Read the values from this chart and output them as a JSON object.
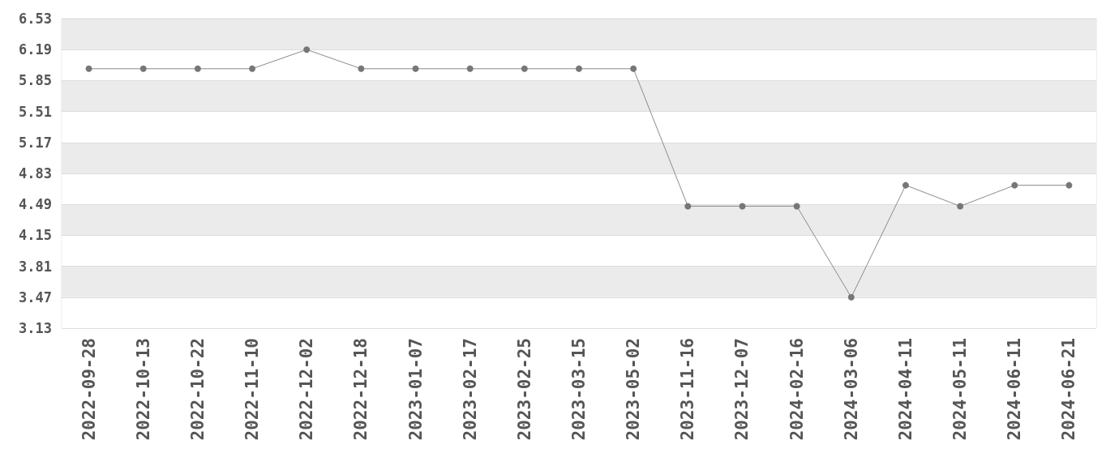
{
  "chart_data": {
    "type": "line",
    "categories": [
      "2022-09-28",
      "2022-10-13",
      "2022-10-22",
      "2022-11-10",
      "2022-12-02",
      "2022-12-18",
      "2023-01-07",
      "2023-02-17",
      "2023-02-25",
      "2023-03-15",
      "2023-05-02",
      "2023-11-16",
      "2023-12-07",
      "2024-02-16",
      "2024-03-06",
      "2024-04-11",
      "2024-05-11",
      "2024-06-11",
      "2024-06-21"
    ],
    "values": [
      5.98,
      5.98,
      5.98,
      5.98,
      6.19,
      5.98,
      5.98,
      5.98,
      5.98,
      5.98,
      5.98,
      4.47,
      4.47,
      4.47,
      3.47,
      4.7,
      4.47,
      4.7,
      4.7
    ],
    "color": "#777777",
    "ylim": [
      3.13,
      6.53
    ],
    "yticks": [
      3.13,
      3.47,
      3.81,
      4.15,
      4.49,
      4.83,
      5.17,
      5.51,
      5.85,
      6.19,
      6.53
    ],
    "grid": "y",
    "marker": "circle",
    "line_style": "solid"
  }
}
